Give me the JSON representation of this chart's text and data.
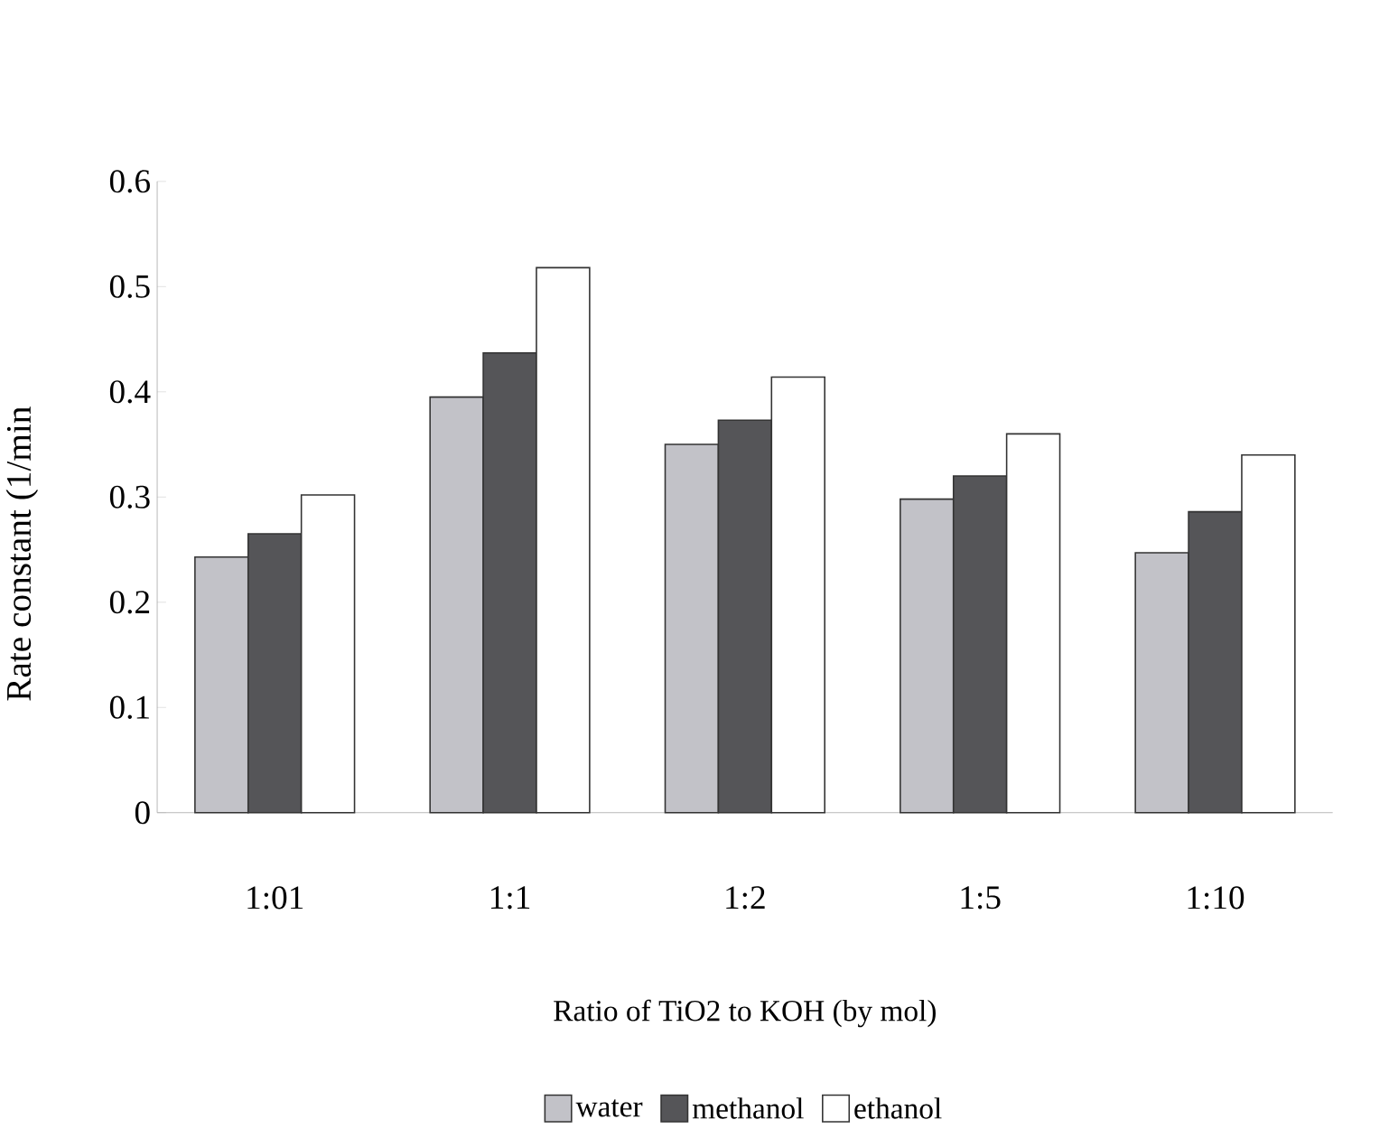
{
  "chart_data": {
    "type": "bar",
    "xlabel": "Ratio of TiO2 to KOH (by mol)",
    "ylabel": "Rate constant (1/min",
    "categories": [
      "1:01",
      "1:1",
      "1:2",
      "1:5",
      "1:10"
    ],
    "series": [
      {
        "name": "water",
        "color": "#c2c2c8",
        "values": [
          0.243,
          0.395,
          0.35,
          0.298,
          0.247
        ]
      },
      {
        "name": "methanol",
        "color": "#555558",
        "values": [
          0.265,
          0.437,
          0.373,
          0.32,
          0.286
        ]
      },
      {
        "name": "ethanol",
        "color": "#ffffff",
        "values": [
          0.302,
          0.518,
          0.414,
          0.36,
          0.34
        ]
      }
    ],
    "ylim": [
      0,
      0.6
    ],
    "yticks": [
      0,
      0.1,
      0.2,
      0.3,
      0.4,
      0.5,
      0.6
    ],
    "legend": "bottom"
  }
}
